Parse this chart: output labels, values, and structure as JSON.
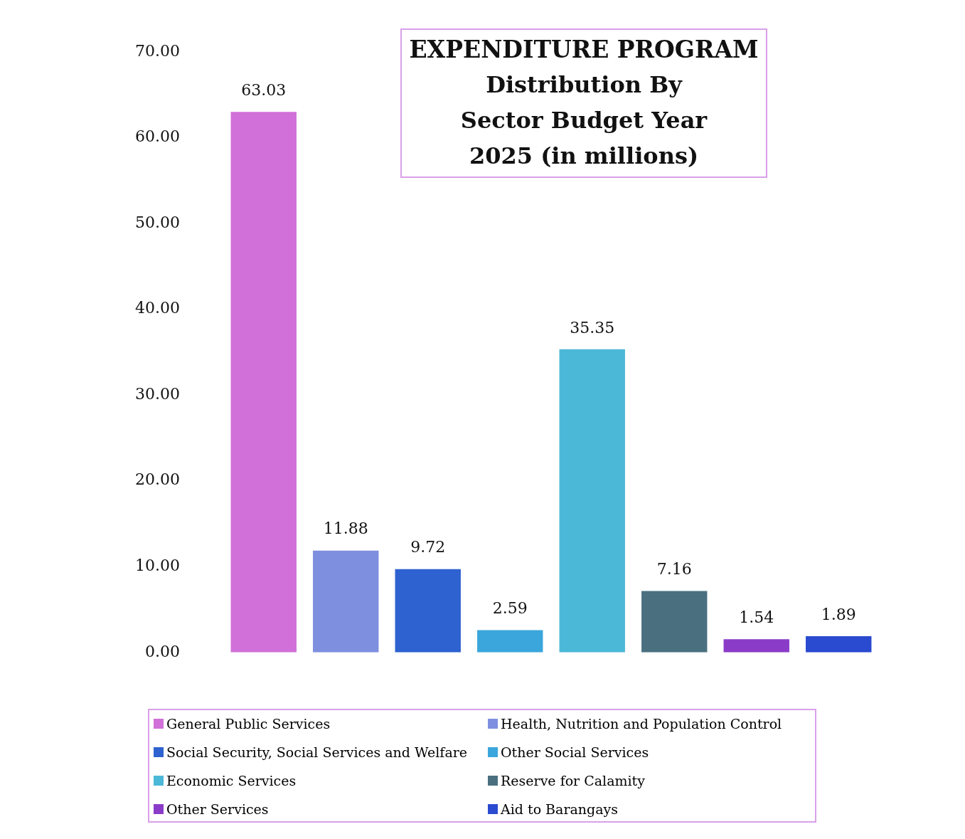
{
  "chart_data": {
    "type": "bar",
    "title": "EXPENDITURE PROGRAM",
    "subtitle": "Distribution By Sector Budget Year 2025 (in millions)",
    "categories": [
      null,
      null,
      null,
      null,
      null,
      null,
      null,
      null
    ],
    "series": [
      {
        "name": "General Public Services",
        "color": "#d070d8",
        "values": [
          63.03,
          null,
          null,
          null,
          null,
          null,
          null,
          null
        ]
      },
      {
        "name": "Health, Nutrition and Population Control",
        "color": "#7f8fe0",
        "values": [
          null,
          11.88,
          null,
          null,
          null,
          null,
          null,
          null
        ]
      },
      {
        "name": "Social Security, Social Services and Welfare",
        "color": "#2e62d0",
        "values": [
          null,
          null,
          9.72,
          null,
          null,
          null,
          null,
          null
        ]
      },
      {
        "name": "Other Social Services",
        "color": "#3aa6dc",
        "values": [
          null,
          null,
          null,
          2.59,
          null,
          null,
          null,
          null
        ]
      },
      {
        "name": "Economic Services",
        "color": "#4cb8d8",
        "values": [
          null,
          null,
          null,
          null,
          35.35,
          null,
          null,
          null
        ]
      },
      {
        "name": "Reserve for Calamity",
        "color": "#4a7080",
        "values": [
          null,
          null,
          null,
          null,
          null,
          7.16,
          null,
          null
        ]
      },
      {
        "name": "Other Services",
        "color": "#8a3cc8",
        "values": [
          null,
          null,
          null,
          null,
          null,
          null,
          1.54,
          null
        ]
      },
      {
        "name": "Aid to Barangays",
        "color": "#2a4ad0",
        "values": [
          null,
          null,
          null,
          null,
          null,
          null,
          null,
          1.89
        ]
      }
    ],
    "ylim": [
      0,
      70
    ],
    "yticks": [
      {
        "value": 0,
        "label": "0.00"
      },
      {
        "value": 10,
        "label": "10.00"
      },
      {
        "value": 20,
        "label": "20.00"
      },
      {
        "value": 30,
        "label": "30.00"
      },
      {
        "value": 40,
        "label": "40.00"
      },
      {
        "value": 50,
        "label": "50.00"
      },
      {
        "value": 60,
        "label": "60.00"
      },
      {
        "value": 70,
        "label": "70.00"
      }
    ],
    "tick_labels": "y",
    "grid": false,
    "stacked": true,
    "legend": "bottom",
    "data_labels": true
  }
}
